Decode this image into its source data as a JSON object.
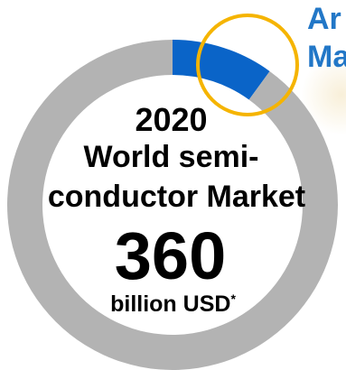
{
  "chart_data": {
    "type": "pie",
    "style": "donut",
    "title_year": "2020",
    "title_line1": "World semi-",
    "title_line2": "conductor Market",
    "center_value": "360",
    "center_unit": "billion USD",
    "center_unit_mark": "*",
    "total": 360,
    "slices": [
      {
        "value_fraction": 0.1,
        "color": "#0a64c8"
      },
      {
        "value_fraction": 0.9,
        "color": "#b3b3b3"
      }
    ],
    "highlight_ring_color": "#f5b400",
    "callout_lines": [
      "Ar",
      "Ma"
    ],
    "callout_color": "#2277c7"
  }
}
